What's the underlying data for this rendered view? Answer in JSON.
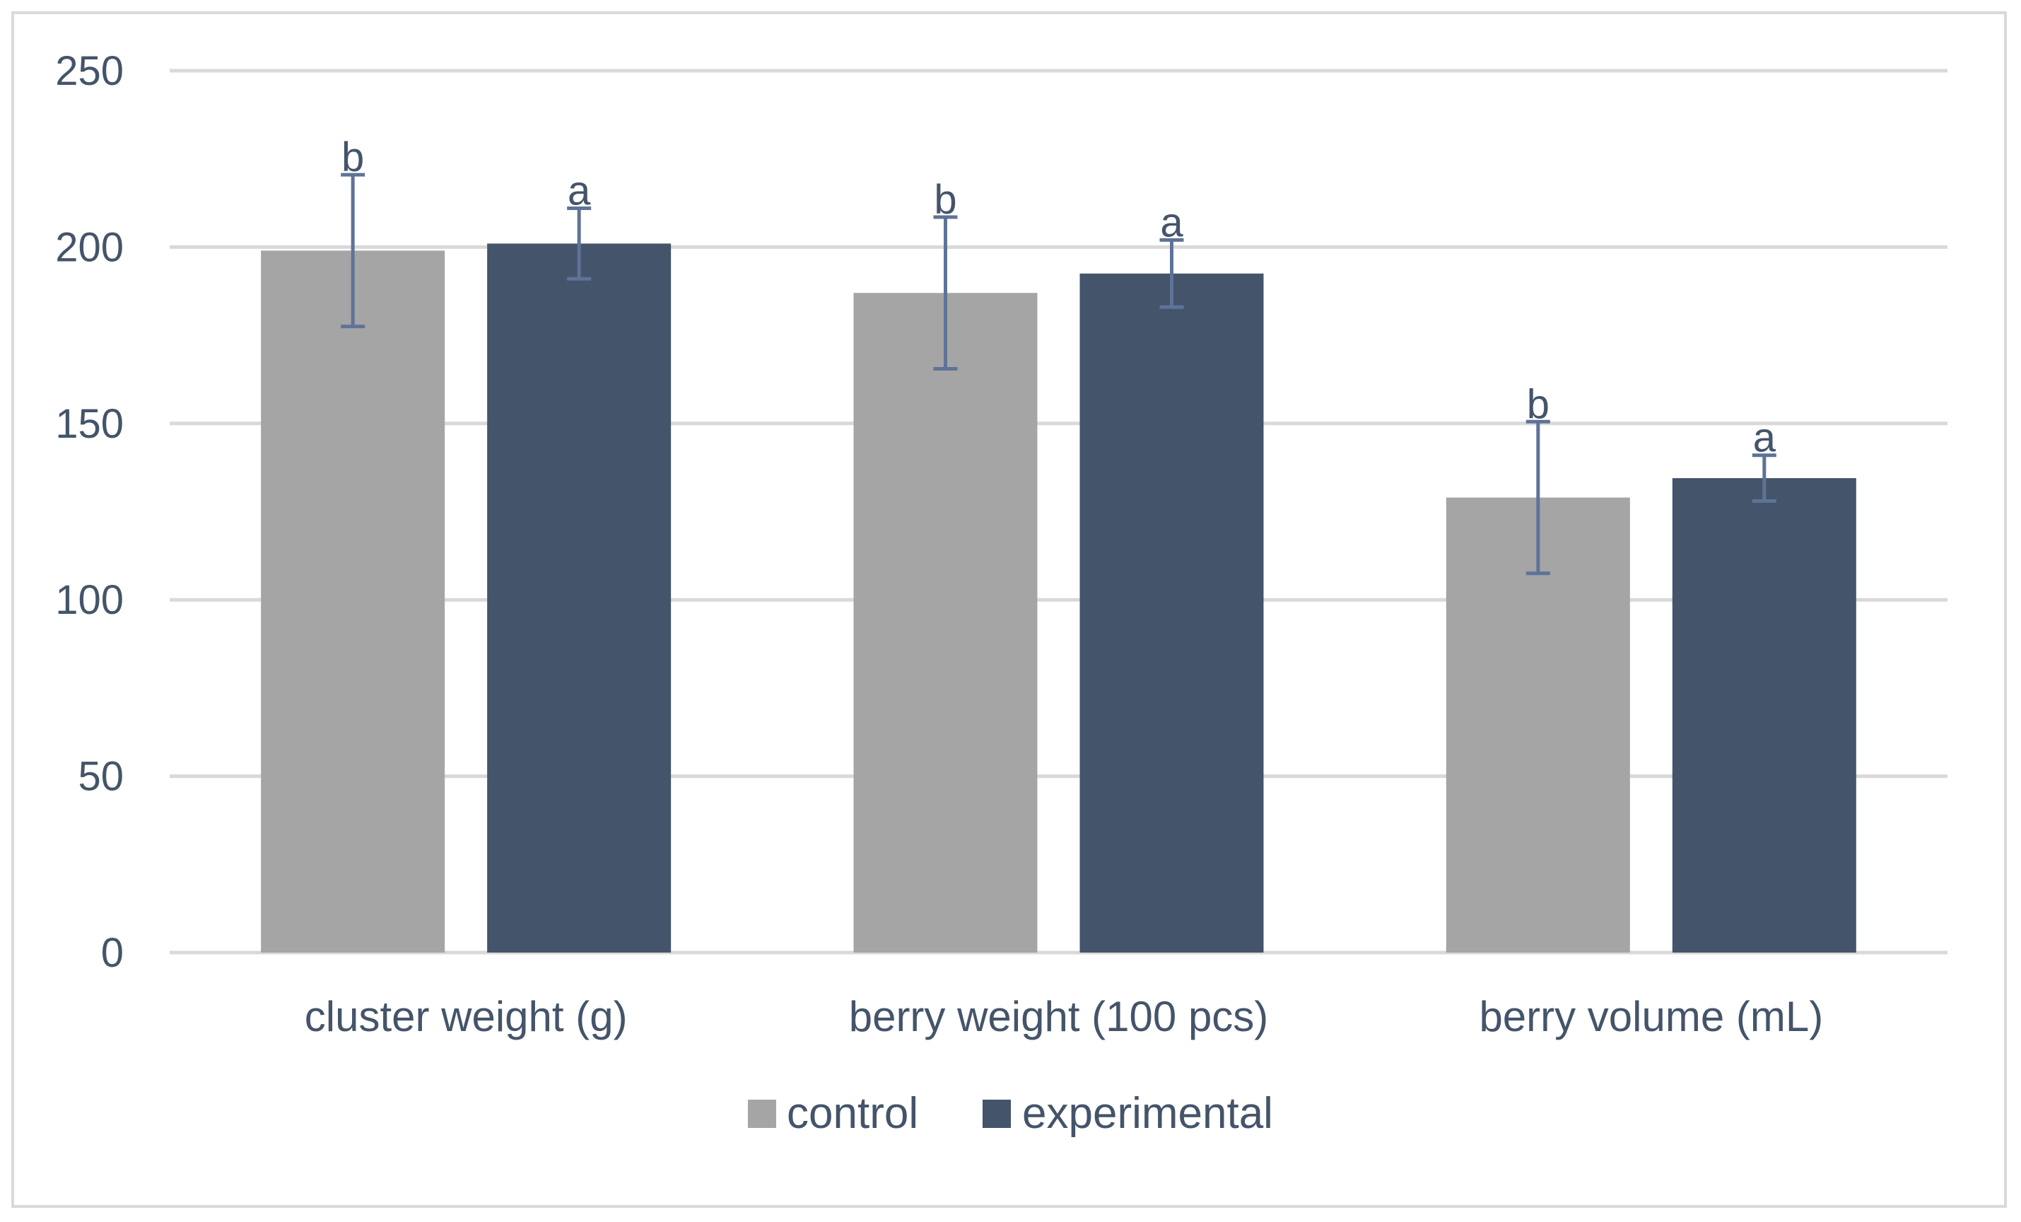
{
  "chart_data": {
    "type": "bar",
    "title": "",
    "xlabel": "",
    "ylabel": "",
    "ylim": [
      0,
      250
    ],
    "yticks": [
      0,
      50,
      100,
      150,
      200,
      250
    ],
    "grid": true,
    "legend_position": "bottom",
    "categories": [
      "cluster weight (g)",
      "berry weight (100 pcs)",
      "berry volume (mL)"
    ],
    "series": [
      {
        "name": "control",
        "color": "#a5a5a5",
        "values": [
          199,
          187,
          129
        ],
        "errors": [
          21.5,
          21.5,
          21.5
        ],
        "letters": [
          "b",
          "b",
          "b"
        ]
      },
      {
        "name": "experimental",
        "color": "#44546a",
        "values": [
          201,
          192.5,
          134.5
        ],
        "errors": [
          10,
          9.5,
          6.5
        ],
        "letters": [
          "a",
          "a",
          "a"
        ]
      }
    ],
    "error_bar_color": "#5f7397",
    "grid_color": "#d9d9d9",
    "axis_color": "#d9d9d9"
  }
}
